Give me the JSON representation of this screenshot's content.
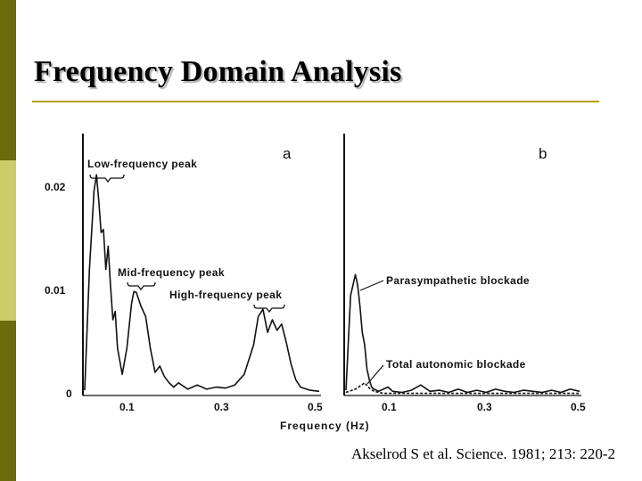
{
  "slide": {
    "title": "Frequency Domain Analysis",
    "citation": "Akselrod S et al. Science. 1981; 213: 220-2",
    "colors": {
      "stripe_dark": "#6b6b0d",
      "stripe_light": "#cbcc6a",
      "rule": "#b5a100",
      "line": "#111111"
    }
  },
  "chart_data": [
    {
      "type": "line",
      "panel_label": "a",
      "xlabel": "Frequency (Hz)",
      "ylabel": "",
      "x_tick_labels": [
        "0.1",
        "0.3",
        "0.5"
      ],
      "y_tick_labels": [
        "0",
        "0.01",
        "0.02"
      ],
      "xlim": [
        0.0,
        0.5
      ],
      "ylim": [
        0,
        0.02
      ],
      "annotations": [
        "Low-frequency peak",
        "Mid-frequency peak",
        "High-frequency peak"
      ],
      "series": [
        {
          "x": [
            0.0,
            0.01,
            0.02,
            0.025,
            0.03,
            0.035,
            0.04,
            0.045,
            0.05,
            0.055,
            0.06,
            0.065,
            0.07,
            0.08,
            0.09,
            0.1,
            0.105,
            0.11,
            0.12,
            0.13,
            0.14,
            0.15,
            0.16,
            0.17,
            0.18,
            0.19,
            0.2,
            0.22,
            0.24,
            0.26,
            0.28,
            0.3,
            0.32,
            0.34,
            0.36,
            0.37,
            0.38,
            0.39,
            0.4,
            0.41,
            0.42,
            0.43,
            0.44,
            0.45,
            0.46,
            0.48,
            0.5
          ],
          "y": [
            0.0005,
            0.012,
            0.0195,
            0.021,
            0.0185,
            0.0155,
            0.0158,
            0.012,
            0.0142,
            0.0105,
            0.0072,
            0.008,
            0.0045,
            0.002,
            0.0045,
            0.0088,
            0.0099,
            0.0098,
            0.0085,
            0.0075,
            0.0045,
            0.0022,
            0.0028,
            0.0018,
            0.0012,
            0.0008,
            0.0012,
            0.0006,
            0.001,
            0.0006,
            0.0008,
            0.0007,
            0.001,
            0.002,
            0.0048,
            0.0075,
            0.0082,
            0.006,
            0.0072,
            0.0062,
            0.0068,
            0.005,
            0.003,
            0.0015,
            0.0008,
            0.0005,
            0.0004
          ]
        }
      ]
    },
    {
      "type": "line",
      "panel_label": "b",
      "xlabel": "Frequency (Hz)",
      "ylabel": "",
      "x_tick_labels": [
        "0.1",
        "0.3",
        "0.5"
      ],
      "y_tick_labels": [],
      "xlim": [
        0.0,
        0.5
      ],
      "ylim": [
        0,
        0.02
      ],
      "annotations": [
        "Parasympathetic blockade",
        "Total autonomic blockade"
      ],
      "series": [
        {
          "name": "Parasympathetic blockade",
          "x": [
            0.0,
            0.01,
            0.02,
            0.025,
            0.03,
            0.035,
            0.04,
            0.045,
            0.05,
            0.055,
            0.06,
            0.07,
            0.08,
            0.09,
            0.1,
            0.12,
            0.14,
            0.16,
            0.18,
            0.2,
            0.22,
            0.24,
            0.26,
            0.28,
            0.3,
            0.32,
            0.34,
            0.36,
            0.38,
            0.4,
            0.42,
            0.44,
            0.46,
            0.48,
            0.5
          ],
          "y": [
            0.0005,
            0.0095,
            0.0115,
            0.0105,
            0.0085,
            0.006,
            0.0048,
            0.0025,
            0.0015,
            0.0008,
            0.0006,
            0.0004,
            0.0006,
            0.0008,
            0.0004,
            0.0003,
            0.0005,
            0.001,
            0.0004,
            0.0005,
            0.0003,
            0.0006,
            0.0003,
            0.0005,
            0.0003,
            0.0006,
            0.0004,
            0.0003,
            0.0005,
            0.0004,
            0.0003,
            0.0005,
            0.0003,
            0.0006,
            0.0004
          ]
        },
        {
          "name": "Total autonomic blockade",
          "x": [
            0.0,
            0.02,
            0.04,
            0.05,
            0.06,
            0.08,
            0.1,
            0.2,
            0.3,
            0.4,
            0.5
          ],
          "y": [
            0.0003,
            0.0006,
            0.0012,
            0.0007,
            0.0004,
            0.0002,
            0.0002,
            0.0002,
            0.0002,
            0.0002,
            0.0002
          ]
        }
      ]
    }
  ]
}
